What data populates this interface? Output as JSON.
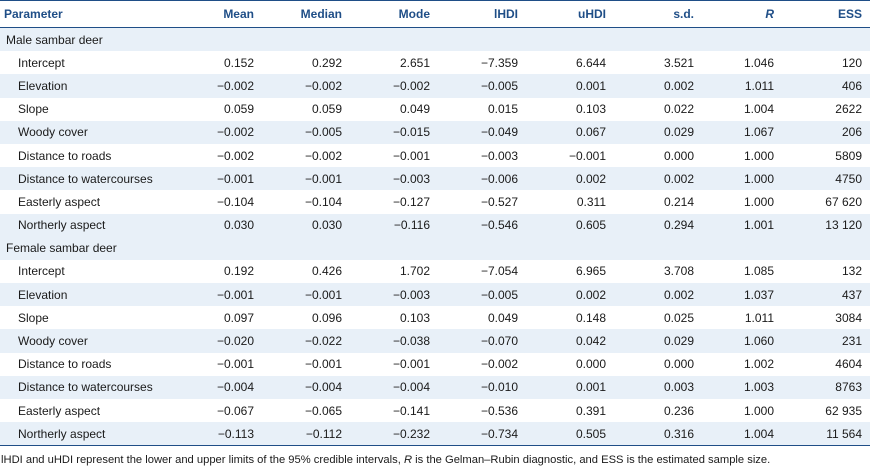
{
  "table": {
    "headers": {
      "parameter": "Parameter",
      "mean": "Mean",
      "median": "Median",
      "mode": "Mode",
      "lhdi": "lHDI",
      "uhdi": "uHDI",
      "sd": "s.d.",
      "r": "R",
      "ess": "ESS"
    },
    "groups": [
      {
        "label": "Male sambar deer",
        "rows": [
          [
            "Intercept",
            "0.152",
            "0.292",
            "2.651",
            "−7.359",
            "6.644",
            "3.521",
            "1.046",
            "120"
          ],
          [
            "Elevation",
            "−0.002",
            "−0.002",
            "−0.002",
            "−0.005",
            "0.001",
            "0.002",
            "1.011",
            "406"
          ],
          [
            "Slope",
            "0.059",
            "0.059",
            "0.049",
            "0.015",
            "0.103",
            "0.022",
            "1.004",
            "2622"
          ],
          [
            "Woody cover",
            "−0.002",
            "−0.005",
            "−0.015",
            "−0.049",
            "0.067",
            "0.029",
            "1.067",
            "206"
          ],
          [
            "Distance to roads",
            "−0.002",
            "−0.002",
            "−0.001",
            "−0.003",
            "−0.001",
            "0.000",
            "1.000",
            "5809"
          ],
          [
            "Distance to watercourses",
            "−0.001",
            "−0.001",
            "−0.003",
            "−0.006",
            "0.002",
            "0.002",
            "1.000",
            "4750"
          ],
          [
            "Easterly aspect",
            "−0.104",
            "−0.104",
            "−0.127",
            "−0.527",
            "0.311",
            "0.214",
            "1.000",
            "67 620"
          ],
          [
            "Northerly aspect",
            "0.030",
            "0.030",
            "−0.116",
            "−0.546",
            "0.605",
            "0.294",
            "1.001",
            "13 120"
          ]
        ]
      },
      {
        "label": "Female sambar deer",
        "rows": [
          [
            "Intercept",
            "0.192",
            "0.426",
            "1.702",
            "−7.054",
            "6.965",
            "3.708",
            "1.085",
            "132"
          ],
          [
            "Elevation",
            "−0.001",
            "−0.001",
            "−0.003",
            "−0.005",
            "0.002",
            "0.002",
            "1.037",
            "437"
          ],
          [
            "Slope",
            "0.097",
            "0.096",
            "0.103",
            "0.049",
            "0.148",
            "0.025",
            "1.011",
            "3084"
          ],
          [
            "Woody cover",
            "−0.020",
            "−0.022",
            "−0.038",
            "−0.070",
            "0.042",
            "0.029",
            "1.060",
            "231"
          ],
          [
            "Distance to roads",
            "−0.001",
            "−0.001",
            "−0.001",
            "−0.002",
            "0.000",
            "0.000",
            "1.002",
            "4604"
          ],
          [
            "Distance to watercourses",
            "−0.004",
            "−0.004",
            "−0.004",
            "−0.010",
            "0.001",
            "0.003",
            "1.003",
            "8763"
          ],
          [
            "Easterly aspect",
            "−0.067",
            "−0.065",
            "−0.141",
            "−0.536",
            "0.391",
            "0.236",
            "1.000",
            "62 935"
          ],
          [
            "Northerly aspect",
            "−0.113",
            "−0.112",
            "−0.232",
            "−0.734",
            "0.505",
            "0.316",
            "1.004",
            "11 564"
          ]
        ]
      }
    ]
  },
  "footnote": {
    "part1": "lHDI and uHDI represent the lower and upper limits of the 95% credible intervals, ",
    "r_symbol": "R",
    "part2": " is the Gelman–Rubin diagnostic, and ESS is the estimated sample size."
  },
  "colors": {
    "header_text": "#1f4e87",
    "shade": "#e8f0f8"
  }
}
